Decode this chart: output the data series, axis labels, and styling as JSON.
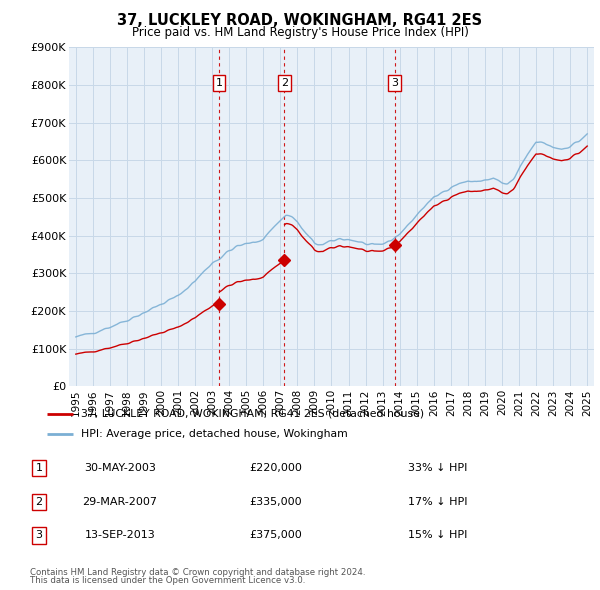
{
  "title": "37, LUCKLEY ROAD, WOKINGHAM, RG41 2ES",
  "subtitle": "Price paid vs. HM Land Registry's House Price Index (HPI)",
  "legend_label_red": "37, LUCKLEY ROAD, WOKINGHAM, RG41 2ES (detached house)",
  "legend_label_blue": "HPI: Average price, detached house, Wokingham",
  "footer1": "Contains HM Land Registry data © Crown copyright and database right 2024.",
  "footer2": "This data is licensed under the Open Government Licence v3.0.",
  "transactions": [
    {
      "num": 1,
      "date": "30-MAY-2003",
      "date_val": 2003.41,
      "price": 220000,
      "pct": "33%",
      "dir": "↓"
    },
    {
      "num": 2,
      "date": "29-MAR-2007",
      "date_val": 2007.24,
      "price": 335000,
      "pct": "17%",
      "dir": "↓"
    },
    {
      "num": 3,
      "date": "13-SEP-2013",
      "date_val": 2013.7,
      "price": 375000,
      "pct": "15%",
      "dir": "↓"
    }
  ],
  "red_color": "#cc0000",
  "blue_color": "#7bafd4",
  "grid_color": "#c8d8e8",
  "background_color": "#ffffff",
  "plot_bg_color": "#e8f0f8",
  "ylim": [
    0,
    900000
  ],
  "yticks": [
    0,
    100000,
    200000,
    300000,
    400000,
    500000,
    600000,
    700000,
    800000,
    900000
  ],
  "ytick_labels": [
    "£0",
    "£100K",
    "£200K",
    "£300K",
    "£400K",
    "£500K",
    "£600K",
    "£700K",
    "£800K",
    "£900K"
  ],
  "xlim_start": 1994.6,
  "xlim_end": 2025.4,
  "xticks": [
    1995,
    1996,
    1997,
    1998,
    1999,
    2000,
    2001,
    2002,
    2003,
    2004,
    2005,
    2006,
    2007,
    2008,
    2009,
    2010,
    2011,
    2012,
    2013,
    2014,
    2015,
    2016,
    2017,
    2018,
    2019,
    2020,
    2021,
    2022,
    2023,
    2024,
    2025
  ]
}
